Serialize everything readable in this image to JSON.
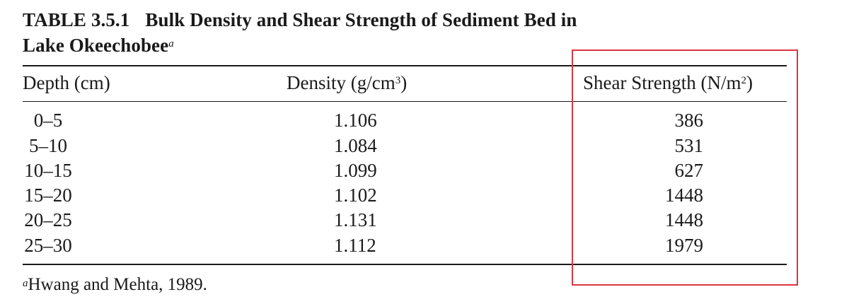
{
  "table": {
    "number": "TABLE 3.5.1",
    "title_line1": "Bulk Density and Shear Strength of Sediment Bed in",
    "title_line2": "Lake Okeechobee",
    "title_footnote_mark": "a",
    "headers": {
      "depth": "Depth (cm)",
      "density_base": "Density (g/cm",
      "density_exp": "3",
      "density_close": ")",
      "shear_base": "Shear Strength (N/m",
      "shear_exp": "2",
      "shear_close": ")"
    },
    "rows": [
      {
        "depth": "0–5",
        "density": "1.106",
        "shear": "386"
      },
      {
        "depth": "5–10",
        "density": "1.084",
        "shear": "531"
      },
      {
        "depth": "10–15",
        "density": "1.099",
        "shear": "627"
      },
      {
        "depth": "15–20",
        "density": "1.102",
        "shear": "1448"
      },
      {
        "depth": "20–25",
        "density": "1.131",
        "shear": "1448"
      },
      {
        "depth": "25–30",
        "density": "1.112",
        "shear": "1979"
      }
    ],
    "footnote_mark": "a",
    "footnote_text": "Hwang and Mehta, 1989."
  },
  "annotation": {
    "highlight_color": "#d9363e"
  }
}
